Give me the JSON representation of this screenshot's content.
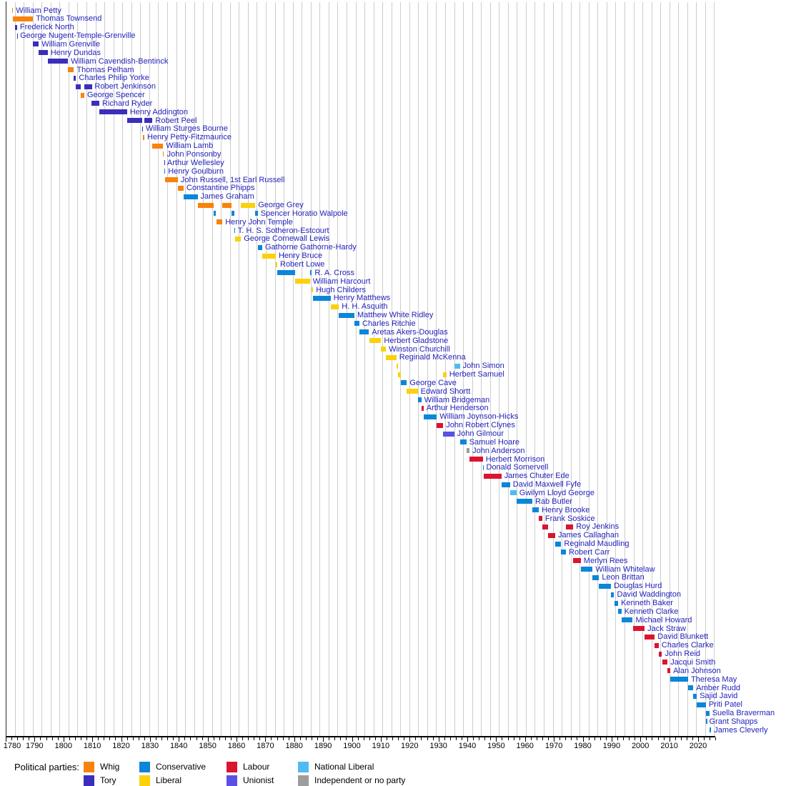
{
  "chart_data": {
    "type": "timeline",
    "description": "Timeline of Home Secretaries by political party",
    "axis": {
      "start_year": 1780,
      "end_year": 2026,
      "major_tick_interval": 10,
      "minor_tick_interval": 2,
      "tick_labels": [
        "1780",
        "1790",
        "1800",
        "1810",
        "1820",
        "1830",
        "1840",
        "1850",
        "1860",
        "1870",
        "1880",
        "1890",
        "1900",
        "1910",
        "1920",
        "1930",
        "1940",
        "1950",
        "1960",
        "1970",
        "1980",
        "1990",
        "2000",
        "2010",
        "2020"
      ],
      "grid": true
    },
    "party_colors": {
      "whig": "#F8830C",
      "tory": "#3B2EBB",
      "conservative": "#0B86D8",
      "liberal": "#FBD10D",
      "labour": "#DB1430",
      "unionist": "#5A50E5",
      "national_liberal": "#4FBBF2",
      "independent": "#9D9D9D"
    },
    "label_color": "#2323BB",
    "legend": {
      "title": "Political parties:",
      "items": [
        {
          "label": "Whig",
          "party": "whig"
        },
        {
          "label": "Tory",
          "party": "tory"
        },
        {
          "label": "Conservative",
          "party": "conservative"
        },
        {
          "label": "Liberal",
          "party": "liberal"
        },
        {
          "label": "Labour",
          "party": "labour"
        },
        {
          "label": "Unionist",
          "party": "unionist"
        },
        {
          "label": "National Liberal",
          "party": "national_liberal"
        },
        {
          "label": "Independent or no party",
          "party": "independent"
        }
      ]
    },
    "entries": [
      {
        "name": "William Petty",
        "terms": [
          [
            1782.2,
            1782.55,
            "whig"
          ]
        ]
      },
      {
        "name": "Thomas Townsend",
        "terms": [
          [
            1782.55,
            1789.45,
            "whig"
          ]
        ]
      },
      {
        "name": "Frederick North",
        "terms": [
          [
            1783.28,
            1783.95,
            "tory"
          ]
        ]
      },
      {
        "name": "George Nugent-Temple-Grenville",
        "terms": [
          [
            1783.96,
            1784.0,
            "tory"
          ]
        ]
      },
      {
        "name": "William Grenville",
        "terms": [
          [
            1789.45,
            1791.45,
            "tory"
          ]
        ]
      },
      {
        "name": "Henry Dundas",
        "terms": [
          [
            1791.45,
            1794.55,
            "tory"
          ]
        ]
      },
      {
        "name": "William Cavendish-Bentinck",
        "terms": [
          [
            1794.55,
            1801.57,
            "tory"
          ]
        ]
      },
      {
        "name": "Thomas Pelham",
        "terms": [
          [
            1801.57,
            1803.63,
            "whig"
          ]
        ]
      },
      {
        "name": "Charles Philip Yorke",
        "terms": [
          [
            1803.63,
            1804.37,
            "tory"
          ]
        ]
      },
      {
        "name": "Robert Jenkinson",
        "terms": [
          [
            1804.37,
            1806.1,
            "tory"
          ],
          [
            1807.24,
            1809.83,
            "tory"
          ]
        ]
      },
      {
        "name": "George Spencer",
        "terms": [
          [
            1806.1,
            1807.24,
            "whig"
          ]
        ]
      },
      {
        "name": "Richard Ryder",
        "terms": [
          [
            1809.83,
            1812.44,
            "tory"
          ]
        ]
      },
      {
        "name": "Henry Addington",
        "terms": [
          [
            1812.44,
            1822.04,
            "tory"
          ]
        ]
      },
      {
        "name": "Robert Peel",
        "terms": [
          [
            1822.04,
            1827.3,
            "tory"
          ],
          [
            1828.06,
            1830.88,
            "tory"
          ]
        ]
      },
      {
        "name": "William Sturges Bourne",
        "terms": [
          [
            1827.3,
            1827.54,
            "tory"
          ]
        ]
      },
      {
        "name": "Henry Petty-Fitzmaurice",
        "terms": [
          [
            1827.54,
            1828.06,
            "whig"
          ]
        ]
      },
      {
        "name": "William Lamb",
        "terms": [
          [
            1830.88,
            1834.55,
            "whig"
          ]
        ]
      },
      {
        "name": "John Ponsonby",
        "terms": [
          [
            1834.55,
            1834.88,
            "whig"
          ]
        ]
      },
      {
        "name": "Arthur Wellesley",
        "terms": [
          [
            1834.88,
            1834.97,
            "tory"
          ]
        ]
      },
      {
        "name": "Henry Goulburn",
        "terms": [
          [
            1834.97,
            1835.3,
            "conservative"
          ]
        ]
      },
      {
        "name": "John Russell, 1st Earl Russell",
        "terms": [
          [
            1835.3,
            1839.67,
            "whig"
          ]
        ]
      },
      {
        "name": "Constantine Phipps",
        "terms": [
          [
            1839.67,
            1841.68,
            "whig"
          ]
        ]
      },
      {
        "name": "James Graham",
        "terms": [
          [
            1841.68,
            1846.51,
            "conservative"
          ]
        ]
      },
      {
        "name": "George Grey",
        "terms": [
          [
            1846.51,
            1852.15,
            "whig"
          ],
          [
            1855.11,
            1858.15,
            "whig"
          ],
          [
            1861.56,
            1866.49,
            "liberal"
          ]
        ]
      },
      {
        "name": "Spencer Horatio Walpole",
        "terms": [
          [
            1852.16,
            1852.96,
            "conservative"
          ],
          [
            1858.16,
            1859.17,
            "conservative"
          ],
          [
            1866.51,
            1867.38,
            "conservative"
          ]
        ]
      },
      {
        "name": "Henry John Temple",
        "terms": [
          [
            1852.99,
            1855.1,
            "whig"
          ]
        ]
      },
      {
        "name": "T. H. S. Sotheron-Estcourt",
        "terms": [
          [
            1859.17,
            1859.45,
            "conservative"
          ]
        ]
      },
      {
        "name": "George Cornewall Lewis",
        "terms": [
          [
            1859.46,
            1861.56,
            "liberal"
          ]
        ]
      },
      {
        "name": "Gathorne Gathorne-Hardy",
        "terms": [
          [
            1867.38,
            1868.92,
            "conservative"
          ]
        ]
      },
      {
        "name": "Henry Bruce",
        "terms": [
          [
            1868.93,
            1873.62,
            "liberal"
          ]
        ]
      },
      {
        "name": "Robert Lowe",
        "terms": [
          [
            1873.62,
            1874.12,
            "liberal"
          ]
        ]
      },
      {
        "name": "R. A. Cross",
        "terms": [
          [
            1874.13,
            1880.33,
            "conservative"
          ],
          [
            1885.46,
            1886.1,
            "conservative"
          ]
        ]
      },
      {
        "name": "William Harcourt",
        "terms": [
          [
            1880.33,
            1885.46,
            "liberal"
          ]
        ]
      },
      {
        "name": "Hugh Childers",
        "terms": [
          [
            1886.1,
            1886.56,
            "liberal"
          ]
        ]
      },
      {
        "name": "Henry Matthews",
        "terms": [
          [
            1886.6,
            1892.62,
            "conservative"
          ]
        ]
      },
      {
        "name": "H. H. Asquith",
        "terms": [
          [
            1892.63,
            1895.48,
            "liberal"
          ]
        ]
      },
      {
        "name": "Matthew White Ridley",
        "terms": [
          [
            1895.49,
            1900.87,
            "conservative"
          ]
        ]
      },
      {
        "name": "Charles Ritchie",
        "terms": [
          [
            1900.87,
            1902.61,
            "conservative"
          ]
        ]
      },
      {
        "name": "Aretas Akers-Douglas",
        "terms": [
          [
            1902.61,
            1905.93,
            "conservative"
          ]
        ]
      },
      {
        "name": "Herbert Gladstone",
        "terms": [
          [
            1905.94,
            1910.13,
            "liberal"
          ]
        ]
      },
      {
        "name": "Winston Churchill",
        "terms": [
          [
            1910.13,
            1911.8,
            "liberal"
          ]
        ]
      },
      {
        "name": "Reginald McKenna",
        "terms": [
          [
            1911.8,
            1915.4,
            "liberal"
          ]
        ]
      },
      {
        "name": "John Simon",
        "terms": [
          [
            1915.4,
            1916.04,
            "liberal"
          ],
          [
            1935.44,
            1937.42,
            "national_liberal"
          ]
        ]
      },
      {
        "name": "Herbert Samuel",
        "terms": [
          [
            1916.05,
            1916.93,
            "liberal"
          ],
          [
            1931.66,
            1932.76,
            "liberal"
          ]
        ]
      },
      {
        "name": "George Cave",
        "terms": [
          [
            1916.94,
            1919.04,
            "conservative"
          ]
        ]
      },
      {
        "name": "Edward Shortt",
        "terms": [
          [
            1919.04,
            1922.81,
            "liberal"
          ]
        ]
      },
      {
        "name": "William Bridgeman",
        "terms": [
          [
            1922.81,
            1924.06,
            "conservative"
          ]
        ]
      },
      {
        "name": "Arthur Henderson",
        "terms": [
          [
            1924.06,
            1924.85,
            "labour"
          ]
        ]
      },
      {
        "name": "William Joynson-Hicks",
        "terms": [
          [
            1924.85,
            1929.42,
            "conservative"
          ]
        ]
      },
      {
        "name": "John Robert Clynes",
        "terms": [
          [
            1929.43,
            1931.66,
            "labour"
          ]
        ]
      },
      {
        "name": "John Gilmour",
        "terms": [
          [
            1931.66,
            1935.44,
            "unionist"
          ]
        ]
      },
      {
        "name": "Samuel Hoare",
        "terms": [
          [
            1937.42,
            1939.67,
            "conservative"
          ]
        ]
      },
      {
        "name": "John Anderson",
        "terms": [
          [
            1939.67,
            1940.76,
            "independent"
          ]
        ]
      },
      {
        "name": "Herbert Morrison",
        "terms": [
          [
            1940.76,
            1945.38,
            "labour"
          ]
        ]
      },
      {
        "name": "Donald Somervell",
        "terms": [
          [
            1945.4,
            1945.57,
            "conservative"
          ]
        ]
      },
      {
        "name": "James Chuter Ede",
        "terms": [
          [
            1945.58,
            1951.82,
            "labour"
          ]
        ]
      },
      {
        "name": "David Maxwell Fyfe",
        "terms": [
          [
            1951.82,
            1954.8,
            "conservative"
          ]
        ]
      },
      {
        "name": "Gwilym Lloyd George",
        "terms": [
          [
            1954.8,
            1957.04,
            "national_liberal"
          ]
        ]
      },
      {
        "name": "Rab Butler",
        "terms": [
          [
            1957.04,
            1962.54,
            "conservative"
          ]
        ]
      },
      {
        "name": "Henry Brooke",
        "terms": [
          [
            1962.54,
            1964.79,
            "conservative"
          ]
        ]
      },
      {
        "name": "Frank Soskice",
        "terms": [
          [
            1964.79,
            1965.97,
            "labour"
          ]
        ]
      },
      {
        "name": "Roy Jenkins",
        "terms": [
          [
            1965.97,
            1967.9,
            "labour"
          ],
          [
            1974.18,
            1976.7,
            "labour"
          ]
        ]
      },
      {
        "name": "James Callaghan",
        "terms": [
          [
            1967.9,
            1970.47,
            "labour"
          ]
        ]
      },
      {
        "name": "Reginald Maudling",
        "terms": [
          [
            1970.47,
            1972.55,
            "conservative"
          ]
        ]
      },
      {
        "name": "Robert Carr",
        "terms": [
          [
            1972.55,
            1974.17,
            "conservative"
          ]
        ]
      },
      {
        "name": "Merlyn Rees",
        "terms": [
          [
            1976.7,
            1979.34,
            "labour"
          ]
        ]
      },
      {
        "name": "William Whitelaw",
        "terms": [
          [
            1979.34,
            1983.45,
            "conservative"
          ]
        ]
      },
      {
        "name": "Leon Brittan",
        "terms": [
          [
            1983.45,
            1985.67,
            "conservative"
          ]
        ]
      },
      {
        "name": "Douglas Hurd",
        "terms": [
          [
            1985.67,
            1989.82,
            "conservative"
          ]
        ]
      },
      {
        "name": "David Waddington",
        "terms": [
          [
            1989.82,
            1990.9,
            "conservative"
          ]
        ]
      },
      {
        "name": "Kenneth Baker",
        "terms": [
          [
            1990.9,
            1992.28,
            "conservative"
          ]
        ]
      },
      {
        "name": "Kenneth Clarke",
        "terms": [
          [
            1992.28,
            1993.4,
            "conservative"
          ]
        ]
      },
      {
        "name": "Michael Howard",
        "terms": [
          [
            1993.4,
            1997.34,
            "conservative"
          ]
        ]
      },
      {
        "name": "Jack Straw",
        "terms": [
          [
            1997.34,
            2001.44,
            "labour"
          ]
        ]
      },
      {
        "name": "David Blunkett",
        "terms": [
          [
            2001.44,
            2004.96,
            "labour"
          ]
        ]
      },
      {
        "name": "Charles Clarke",
        "terms": [
          [
            2004.96,
            2006.35,
            "labour"
          ]
        ]
      },
      {
        "name": "John Reid",
        "terms": [
          [
            2006.35,
            2007.49,
            "labour"
          ]
        ]
      },
      {
        "name": "Jacqui Smith",
        "terms": [
          [
            2007.49,
            2009.43,
            "labour"
          ]
        ]
      },
      {
        "name": "Alan Johnson",
        "terms": [
          [
            2009.43,
            2010.36,
            "labour"
          ]
        ]
      },
      {
        "name": "Theresa May",
        "terms": [
          [
            2010.36,
            2016.54,
            "conservative"
          ]
        ]
      },
      {
        "name": "Amber Rudd",
        "terms": [
          [
            2016.54,
            2018.33,
            "conservative"
          ]
        ]
      },
      {
        "name": "Sajid Javid",
        "terms": [
          [
            2018.33,
            2019.56,
            "conservative"
          ]
        ]
      },
      {
        "name": "Priti Patel",
        "terms": [
          [
            2019.56,
            2022.69,
            "conservative"
          ]
        ]
      },
      {
        "name": "Suella Braverman",
        "terms": [
          [
            2022.69,
            2023.88,
            "conservative"
          ]
        ]
      },
      {
        "name": "Grant Shapps",
        "terms": [
          [
            2022.79,
            2022.84,
            "conservative"
          ]
        ]
      },
      {
        "name": "James Cleverly",
        "terms": [
          [
            2023.88,
            2024.53,
            "conservative"
          ]
        ]
      }
    ]
  }
}
